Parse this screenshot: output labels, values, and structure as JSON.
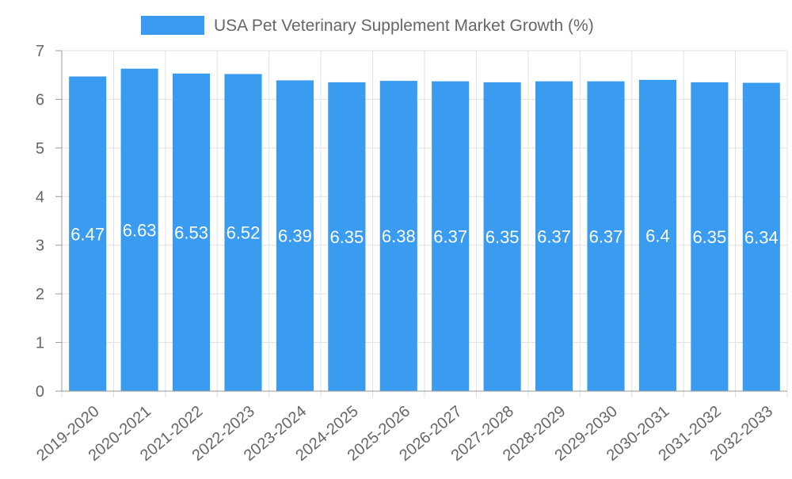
{
  "chart_data": {
    "type": "bar",
    "legend_position": "top-center",
    "categories": [
      "2019-2020",
      "2020-2021",
      "2021-2022",
      "2022-2023",
      "2023-2024",
      "2024-2025",
      "2025-2026",
      "2026-2027",
      "2027-2028",
      "2028-2029",
      "2029-2030",
      "2030-2031",
      "2031-2032",
      "2032-2033"
    ],
    "series": [
      {
        "name": "USA Pet Veterinary Supplement Market Growth (%)",
        "color": "#3a9cf1",
        "values": [
          6.47,
          6.63,
          6.53,
          6.52,
          6.39,
          6.35,
          6.38,
          6.37,
          6.35,
          6.37,
          6.37,
          6.4,
          6.35,
          6.34
        ]
      }
    ],
    "ylim": [
      0,
      7
    ],
    "yticks": [
      0,
      1,
      2,
      3,
      4,
      5,
      6,
      7
    ],
    "grid": true,
    "xlabel": "",
    "ylabel": ""
  }
}
